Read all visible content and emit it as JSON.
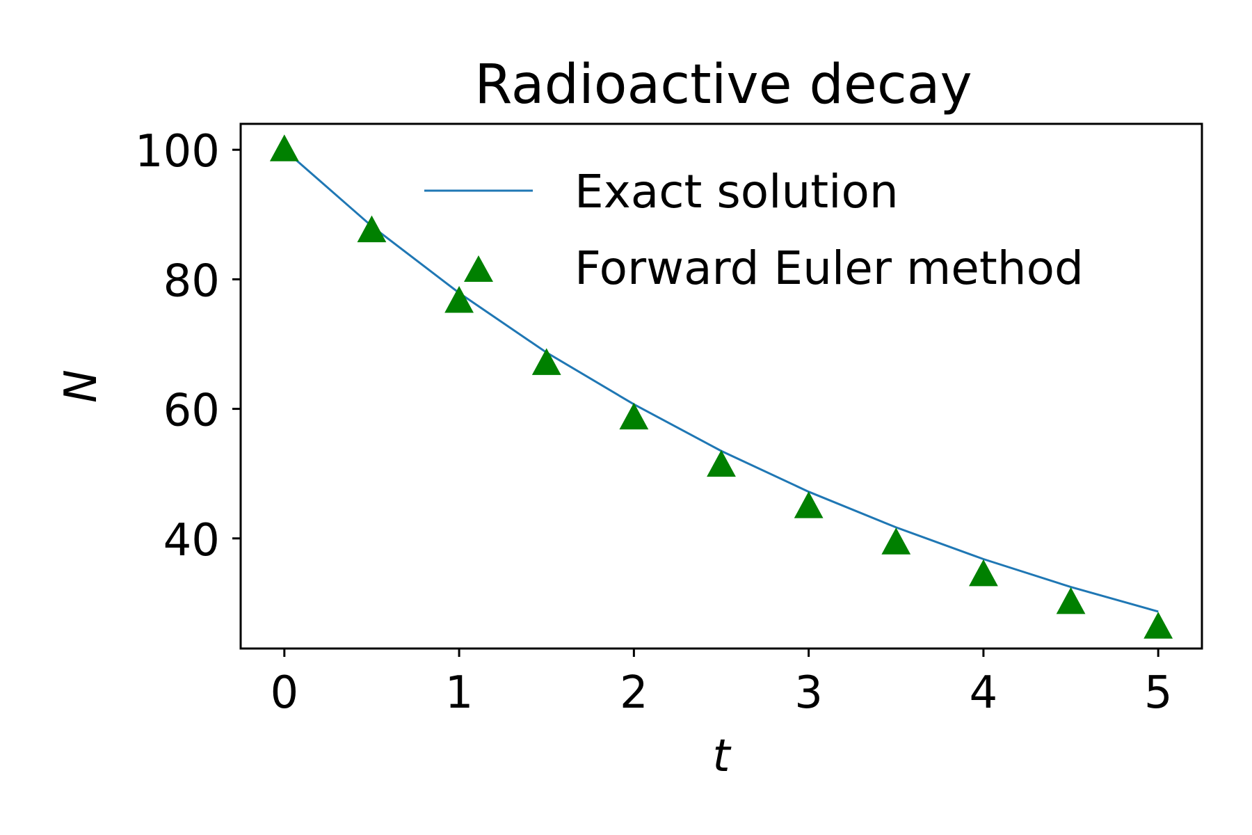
{
  "chart_data": {
    "type": "line",
    "title": "Radioactive decay",
    "xlabel": "t",
    "ylabel": "N",
    "xlim": [
      -0.25,
      5.25
    ],
    "ylim": [
      23,
      104
    ],
    "xticks": [
      0,
      1,
      2,
      3,
      4,
      5
    ],
    "yticks": [
      40,
      60,
      80,
      100
    ],
    "grid": false,
    "legend": {
      "position": "upper right",
      "frame": false
    },
    "series": [
      {
        "name": "Exact solution",
        "kind": "line",
        "color": "#1f77b4",
        "x": [
          0,
          0.5,
          1,
          1.5,
          2,
          2.5,
          3,
          3.5,
          4,
          4.5,
          5
        ],
        "y": [
          100,
          88.2,
          77.9,
          68.7,
          60.7,
          53.5,
          47.2,
          41.7,
          36.8,
          32.5,
          28.7
        ]
      },
      {
        "name": "Forward Euler method",
        "kind": "scatter",
        "marker": "triangle-up",
        "color": "#008000",
        "x": [
          0,
          0.5,
          1,
          1.5,
          2,
          2.5,
          3,
          3.5,
          4,
          4.5,
          5
        ],
        "y": [
          100,
          87.5,
          76.6,
          67.0,
          58.6,
          51.3,
          44.9,
          39.3,
          34.4,
          30.1,
          26.3
        ]
      }
    ]
  }
}
